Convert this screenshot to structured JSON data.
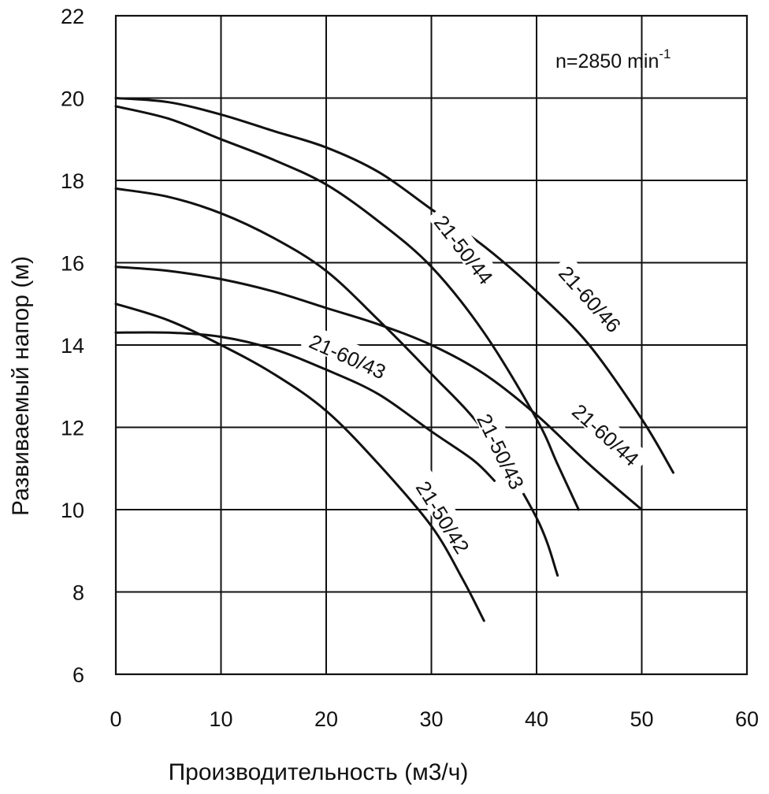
{
  "chart_data": {
    "type": "line",
    "title": "",
    "annotation": {
      "text": "n=2850 min",
      "superscript": "-1"
    },
    "xlabel": "Производительность (м3/ч)",
    "ylabel": "Развиваемый напор (м)",
    "xlim": [
      0,
      60
    ],
    "ylim": [
      6,
      22
    ],
    "xticks": [
      0,
      10,
      20,
      30,
      40,
      50,
      60
    ],
    "yticks": [
      6,
      8,
      10,
      12,
      14,
      16,
      18,
      20,
      22
    ],
    "grid": true,
    "series": [
      {
        "name": "21-50/42",
        "x": [
          0,
          5,
          10,
          15,
          20,
          25,
          30,
          33,
          35
        ],
        "y": [
          15.0,
          14.6,
          14.0,
          13.3,
          12.4,
          11.1,
          9.6,
          8.3,
          7.3
        ],
        "label_pos": {
          "x": 31.0,
          "y": 9.8,
          "angle": 58
        }
      },
      {
        "name": "21-60/43",
        "x": [
          0,
          5,
          10,
          15,
          20,
          25,
          30,
          34,
          36
        ],
        "y": [
          14.3,
          14.3,
          14.2,
          13.9,
          13.4,
          12.8,
          11.9,
          11.2,
          10.7
        ],
        "label_pos": {
          "x": 22.0,
          "y": 13.7,
          "angle": 24
        }
      },
      {
        "name": "21-50/43",
        "x": [
          0,
          5,
          10,
          15,
          20,
          25,
          30,
          35,
          40,
          42
        ],
        "y": [
          17.8,
          17.6,
          17.2,
          16.6,
          15.8,
          14.6,
          13.3,
          11.9,
          9.8,
          8.4
        ],
        "label_pos": {
          "x": 36.5,
          "y": 11.4,
          "angle": 64
        }
      },
      {
        "name": "21-60/44",
        "x": [
          0,
          5,
          10,
          15,
          20,
          25,
          30,
          35,
          40,
          45,
          50
        ],
        "y": [
          15.9,
          15.8,
          15.6,
          15.3,
          14.9,
          14.5,
          14.0,
          13.3,
          12.3,
          11.1,
          10.0
        ],
        "label_pos": {
          "x": 46.5,
          "y": 11.8,
          "angle": 42
        }
      },
      {
        "name": "21-50/44",
        "x": [
          0,
          5,
          10,
          15,
          20,
          25,
          30,
          35,
          40,
          42,
          44
        ],
        "y": [
          19.8,
          19.5,
          19.0,
          18.5,
          17.9,
          17.0,
          15.9,
          14.3,
          12.2,
          11.1,
          10.0
        ],
        "label_pos": {
          "x": 33.0,
          "y": 16.3,
          "angle": 52
        }
      },
      {
        "name": "21-60/46",
        "x": [
          0,
          5,
          10,
          15,
          20,
          25,
          30,
          35,
          40,
          45,
          50,
          53
        ],
        "y": [
          20.0,
          19.9,
          19.6,
          19.2,
          18.8,
          18.2,
          17.3,
          16.4,
          15.3,
          14.0,
          12.2,
          10.9
        ],
        "label_pos": {
          "x": 45.0,
          "y": 15.1,
          "angle": 48
        }
      }
    ]
  }
}
